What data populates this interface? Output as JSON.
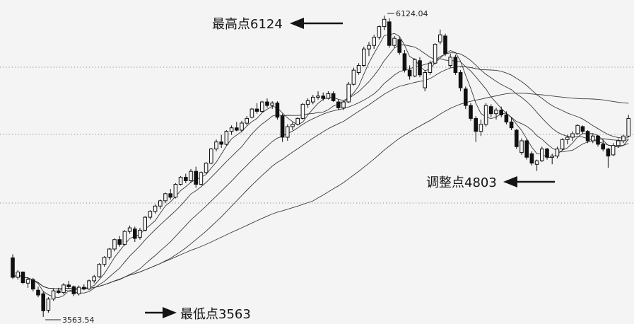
{
  "chart_data": {
    "type": "candlestick",
    "ylim": [
      3503,
      6256
    ],
    "grid": true,
    "gridlines": [
      5685,
      5114,
      4531
    ],
    "open": [
      4065,
      3900,
      3945,
      3850,
      3880,
      3790,
      3760,
      3620,
      3715,
      3785,
      3770,
      3835,
      3820,
      3760,
      3815,
      3800,
      3870,
      3905,
      4010,
      4070,
      4140,
      4220,
      4180,
      4290,
      4310,
      4240,
      4300,
      4410,
      4460,
      4505,
      4550,
      4610,
      4580,
      4690,
      4750,
      4720,
      4800,
      4690,
      4790,
      4870,
      4990,
      5050,
      5030,
      5140,
      5170,
      5150,
      5210,
      5260,
      5330,
      5310,
      5390,
      5360,
      5380,
      5270,
      5090,
      5180,
      5200,
      5250,
      5370,
      5390,
      5430,
      5440,
      5420,
      5460,
      5390,
      5340,
      5390,
      5540,
      5640,
      5700,
      5840,
      5870,
      5940,
      6030,
      6070,
      5870,
      5920,
      5800,
      5660,
      5610,
      5740,
      5510,
      5640,
      5720,
      5900,
      5950,
      5700,
      5770,
      5640,
      5500,
      5360,
      5250,
      5140,
      5200,
      5350,
      5290,
      5320,
      5280,
      5220,
      5150,
      4960,
      5060,
      4950,
      4860,
      4890,
      4990,
      4920,
      4930,
      4990,
      5070,
      5090,
      5120,
      5180,
      5140,
      5060,
      5100,
      5030,
      4990,
      4940,
      5020,
      5060,
      5100
    ],
    "high": [
      4095,
      3960,
      3950,
      3900,
      3895,
      3820,
      3780,
      3730,
      3800,
      3810,
      3850,
      3870,
      3830,
      3830,
      3840,
      3880,
      3920,
      4020,
      4080,
      4150,
      4230,
      4250,
      4300,
      4340,
      4330,
      4320,
      4420,
      4470,
      4520,
      4560,
      4620,
      4650,
      4700,
      4760,
      4780,
      4820,
      4840,
      4800,
      4880,
      5000,
      5070,
      5110,
      5150,
      5190,
      5220,
      5230,
      5270,
      5340,
      5380,
      5400,
      5420,
      5395,
      5395,
      5290,
      5200,
      5220,
      5260,
      5380,
      5420,
      5450,
      5480,
      5470,
      5480,
      5480,
      5410,
      5400,
      5560,
      5680,
      5720,
      5860,
      5900,
      5960,
      6040,
      6124.04,
      6100,
      5950,
      5940,
      5830,
      5700,
      5760,
      5770,
      5660,
      5740,
      5890,
      6005,
      5970,
      5800,
      5790,
      5660,
      5520,
      5380,
      5270,
      5240,
      5380,
      5370,
      5340,
      5350,
      5310,
      5260,
      5160,
      5080,
      5080,
      4970,
      4900,
      5010,
      5000,
      4950,
      5010,
      5080,
      5110,
      5140,
      5200,
      5190,
      5150,
      5120,
      5110,
      5070,
      5000,
      5040,
      5080,
      5110,
      5280
    ],
    "low": [
      3885,
      3880,
      3840,
      3810,
      3780,
      3730,
      3563.54,
      3600,
      3700,
      3760,
      3755,
      3800,
      3740,
      3745,
      3790,
      3790,
      3850,
      3895,
      3990,
      4050,
      4120,
      4160,
      4170,
      4270,
      4200,
      4220,
      4290,
      4390,
      4440,
      4480,
      4530,
      4560,
      4570,
      4680,
      4700,
      4700,
      4660,
      4680,
      4780,
      4860,
      4970,
      5000,
      5020,
      5110,
      5140,
      5130,
      5190,
      5250,
      5290,
      5300,
      5340,
      5330,
      5240,
      5050,
      5060,
      5150,
      5190,
      5240,
      5340,
      5370,
      5410,
      5400,
      5410,
      5390,
      5320,
      5320,
      5380,
      5530,
      5620,
      5690,
      5780,
      5840,
      5920,
      6000,
      5850,
      5850,
      5790,
      5640,
      5580,
      5600,
      5600,
      5480,
      5620,
      5710,
      5880,
      5780,
      5680,
      5620,
      5480,
      5330,
      5230,
      5050,
      5100,
      5180,
      5260,
      5240,
      5260,
      5200,
      5150,
      4990,
      4940,
      4900,
      4850,
      4803,
      4880,
      4900,
      4860,
      4910,
      4980,
      5030,
      5060,
      5110,
      5120,
      5040,
      5040,
      5010,
      4970,
      4830,
      4930,
      5000,
      5040,
      5090
    ],
    "close": [
      3900,
      3945,
      3855,
      3880,
      3800,
      3750,
      3615,
      3715,
      3785,
      3770,
      3835,
      3820,
      3760,
      3815,
      3800,
      3870,
      3905,
      4010,
      4070,
      4140,
      4220,
      4180,
      4290,
      4320,
      4230,
      4300,
      4410,
      4460,
      4505,
      4550,
      4610,
      4580,
      4690,
      4750,
      4720,
      4800,
      4690,
      4790,
      4870,
      4990,
      5050,
      5030,
      5140,
      5170,
      5150,
      5210,
      5250,
      5330,
      5310,
      5390,
      5360,
      5380,
      5260,
      5090,
      5180,
      5200,
      5250,
      5370,
      5400,
      5430,
      5440,
      5420,
      5460,
      5400,
      5340,
      5390,
      5540,
      5660,
      5700,
      5840,
      5870,
      5940,
      6030,
      6092,
      5870,
      5930,
      5810,
      5660,
      5610,
      5750,
      5620,
      5640,
      5720,
      5880,
      5960,
      5800,
      5770,
      5640,
      5510,
      5360,
      5250,
      5140,
      5200,
      5360,
      5290,
      5320,
      5280,
      5220,
      5170,
      5010,
      5060,
      4920,
      4870,
      4890,
      4990,
      4920,
      4930,
      4990,
      5070,
      5090,
      5120,
      5190,
      5140,
      5060,
      5100,
      5030,
      4990,
      4930,
      5020,
      5060,
      5100,
      5250
    ],
    "annotations": {
      "high_label": "最高点6124",
      "high_value": "6124.04",
      "adjust_label": "调整点4803",
      "low_label": "最低点3563",
      "low_value": "3563.54"
    },
    "colors": {
      "up_fill": "#f4f4f4",
      "down_fill": "#111111",
      "line": "#111111",
      "grid": "#8a8a8a"
    }
  }
}
